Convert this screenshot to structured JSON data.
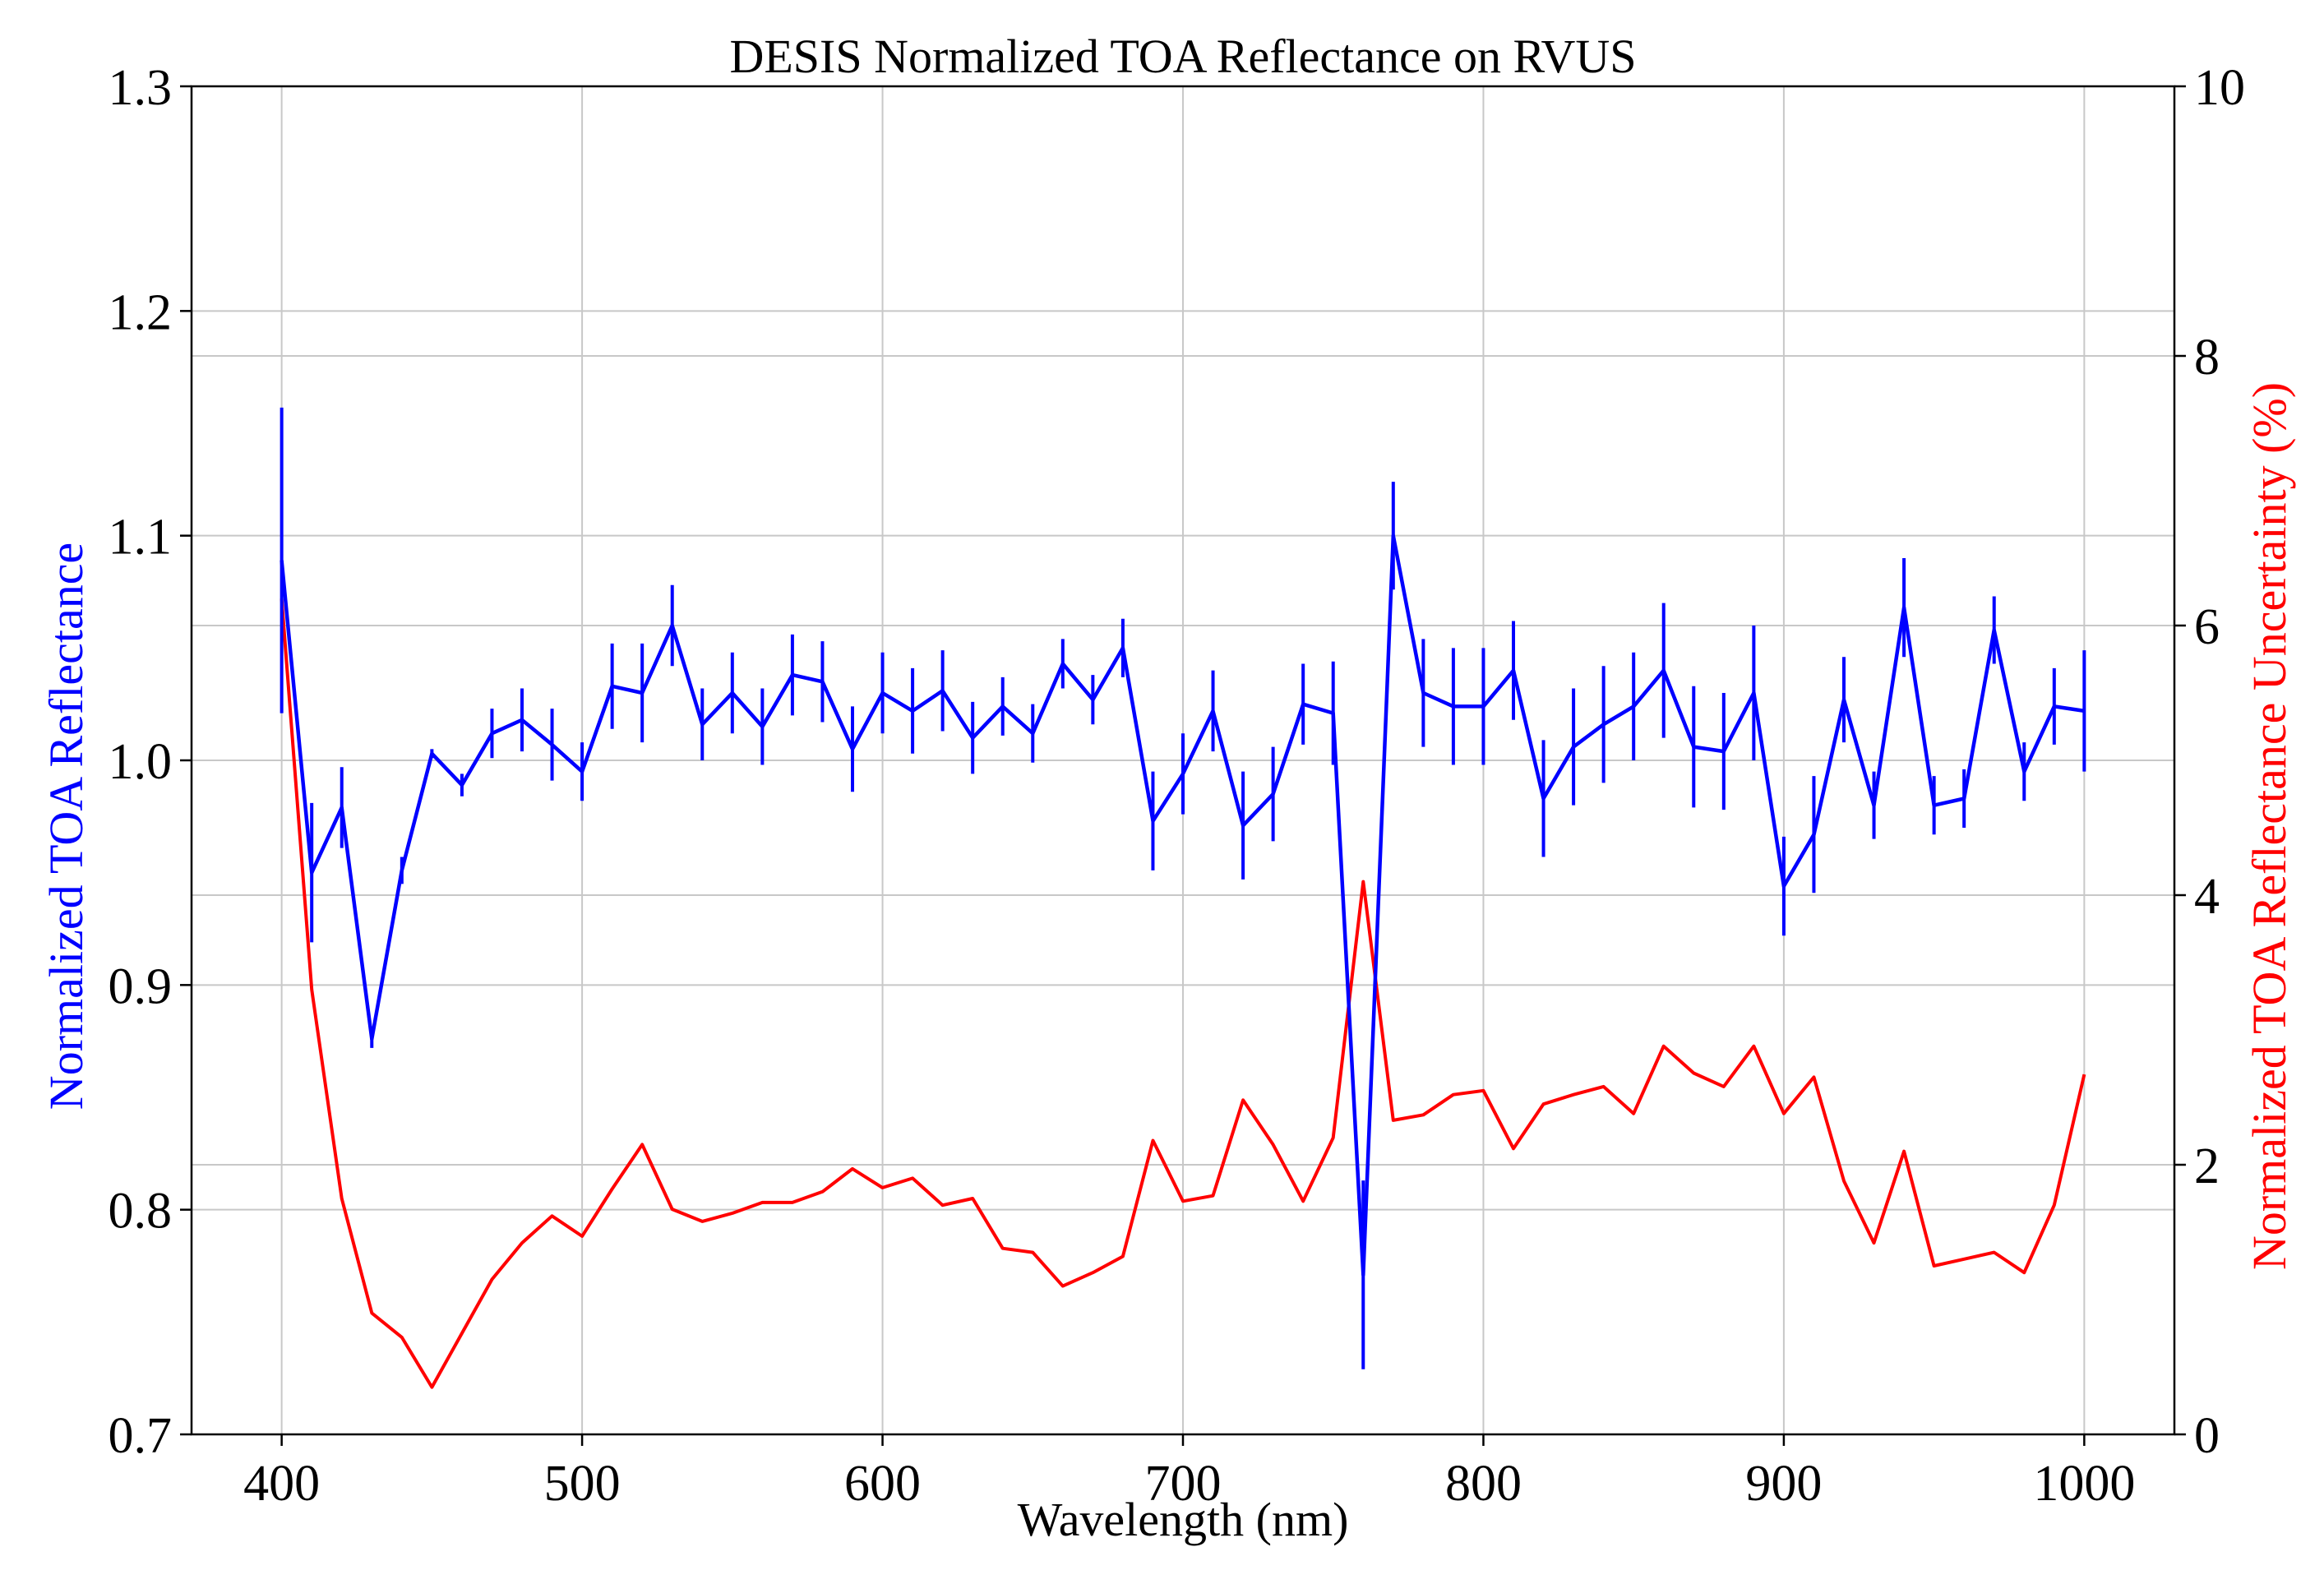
{
  "chart_data": {
    "type": "line",
    "title": "DESIS Normalized TOA Reflectance on RVUS",
    "xlabel": "Wavelength (nm)",
    "ylabel_left": "Normalized TOA Reflectance",
    "ylabel_right": "Normalized TOA Reflectance Uncertainty (%)",
    "xlim": [
      370,
      1030
    ],
    "ylim_left": [
      0.7,
      1.3
    ],
    "ylim_right": [
      0,
      10
    ],
    "x_ticks": [
      400,
      500,
      600,
      700,
      800,
      900,
      1000
    ],
    "y_ticks_left": [
      0.7,
      0.8,
      0.9,
      1.0,
      1.1,
      1.2,
      1.3
    ],
    "y_tick_labels_left": [
      "0.7",
      "0.8",
      "0.9",
      "1.0",
      "1.1",
      "1.2",
      "1.3"
    ],
    "y_ticks_right": [
      0,
      2,
      4,
      6,
      8,
      10
    ],
    "grid": true,
    "colors": {
      "reflectance": "#0000ff",
      "uncertainty": "#ff0000",
      "grid": "#c8c8c8",
      "axes": "#000000"
    },
    "x": [
      400,
      410,
      420,
      430,
      440,
      450,
      460,
      470,
      480,
      490,
      500,
      510,
      520,
      530,
      540,
      550,
      560,
      570,
      580,
      590,
      600,
      610,
      620,
      630,
      640,
      650,
      660,
      670,
      680,
      690,
      700,
      710,
      720,
      730,
      740,
      750,
      760,
      770,
      780,
      790,
      800,
      810,
      820,
      830,
      840,
      850,
      860,
      870,
      880,
      890,
      900,
      910,
      920,
      930,
      940,
      950,
      960,
      970,
      980,
      990,
      1000
    ],
    "series": [
      {
        "name": "Normalized TOA Reflectance",
        "axis": "left",
        "values": [
          1.089,
          0.95,
          0.979,
          0.876,
          0.951,
          1.003,
          0.989,
          1.012,
          1.018,
          1.007,
          0.995,
          1.033,
          1.03,
          1.06,
          1.016,
          1.03,
          1.015,
          1.038,
          1.035,
          1.005,
          1.03,
          1.022,
          1.031,
          1.01,
          1.024,
          1.012,
          1.043,
          1.027,
          1.05,
          0.973,
          0.994,
          1.022,
          0.971,
          0.985,
          1.025,
          1.021,
          0.771,
          1.1,
          1.03,
          1.024,
          1.024,
          1.04,
          0.983,
          1.006,
          1.016,
          1.024,
          1.04,
          1.006,
          1.004,
          1.03,
          0.944,
          0.967,
          1.027,
          0.98,
          1.068,
          0.98,
          0.983,
          1.058,
          0.995,
          1.024,
          1.022
        ],
        "errors": [
          0.068,
          0.031,
          0.018,
          0.004,
          0.006,
          0.002,
          0.005,
          0.011,
          0.014,
          0.016,
          0.013,
          0.019,
          0.022,
          0.018,
          0.016,
          0.018,
          0.017,
          0.018,
          0.018,
          0.019,
          0.018,
          0.019,
          0.018,
          0.016,
          0.013,
          0.013,
          0.011,
          0.011,
          0.013,
          0.022,
          0.018,
          0.018,
          0.024,
          0.021,
          0.018,
          0.023,
          0.042,
          0.024,
          0.024,
          0.026,
          0.026,
          0.022,
          0.026,
          0.026,
          0.026,
          0.024,
          0.03,
          0.027,
          0.026,
          0.03,
          0.022,
          0.026,
          0.019,
          0.015,
          0.022,
          0.013,
          0.013,
          0.015,
          0.013,
          0.017,
          0.027
        ]
      },
      {
        "name": "Normalized TOA Reflectance Uncertainty (%)",
        "axis": "right",
        "values": [
          6.2,
          3.3,
          1.75,
          0.9,
          0.72,
          0.35,
          0.75,
          1.15,
          1.42,
          1.62,
          1.47,
          1.82,
          2.15,
          1.67,
          1.58,
          1.64,
          1.72,
          1.72,
          1.8,
          1.97,
          1.83,
          1.9,
          1.7,
          1.75,
          1.38,
          1.35,
          1.1,
          1.2,
          1.32,
          2.18,
          1.73,
          1.77,
          2.48,
          2.15,
          1.73,
          2.2,
          4.1,
          2.33,
          2.37,
          2.52,
          2.55,
          2.12,
          2.45,
          2.52,
          2.58,
          2.38,
          2.88,
          2.68,
          2.58,
          2.88,
          2.38,
          2.65,
          1.88,
          1.42,
          2.1,
          1.25,
          1.3,
          1.35,
          1.2,
          1.7,
          2.67
        ]
      }
    ]
  }
}
